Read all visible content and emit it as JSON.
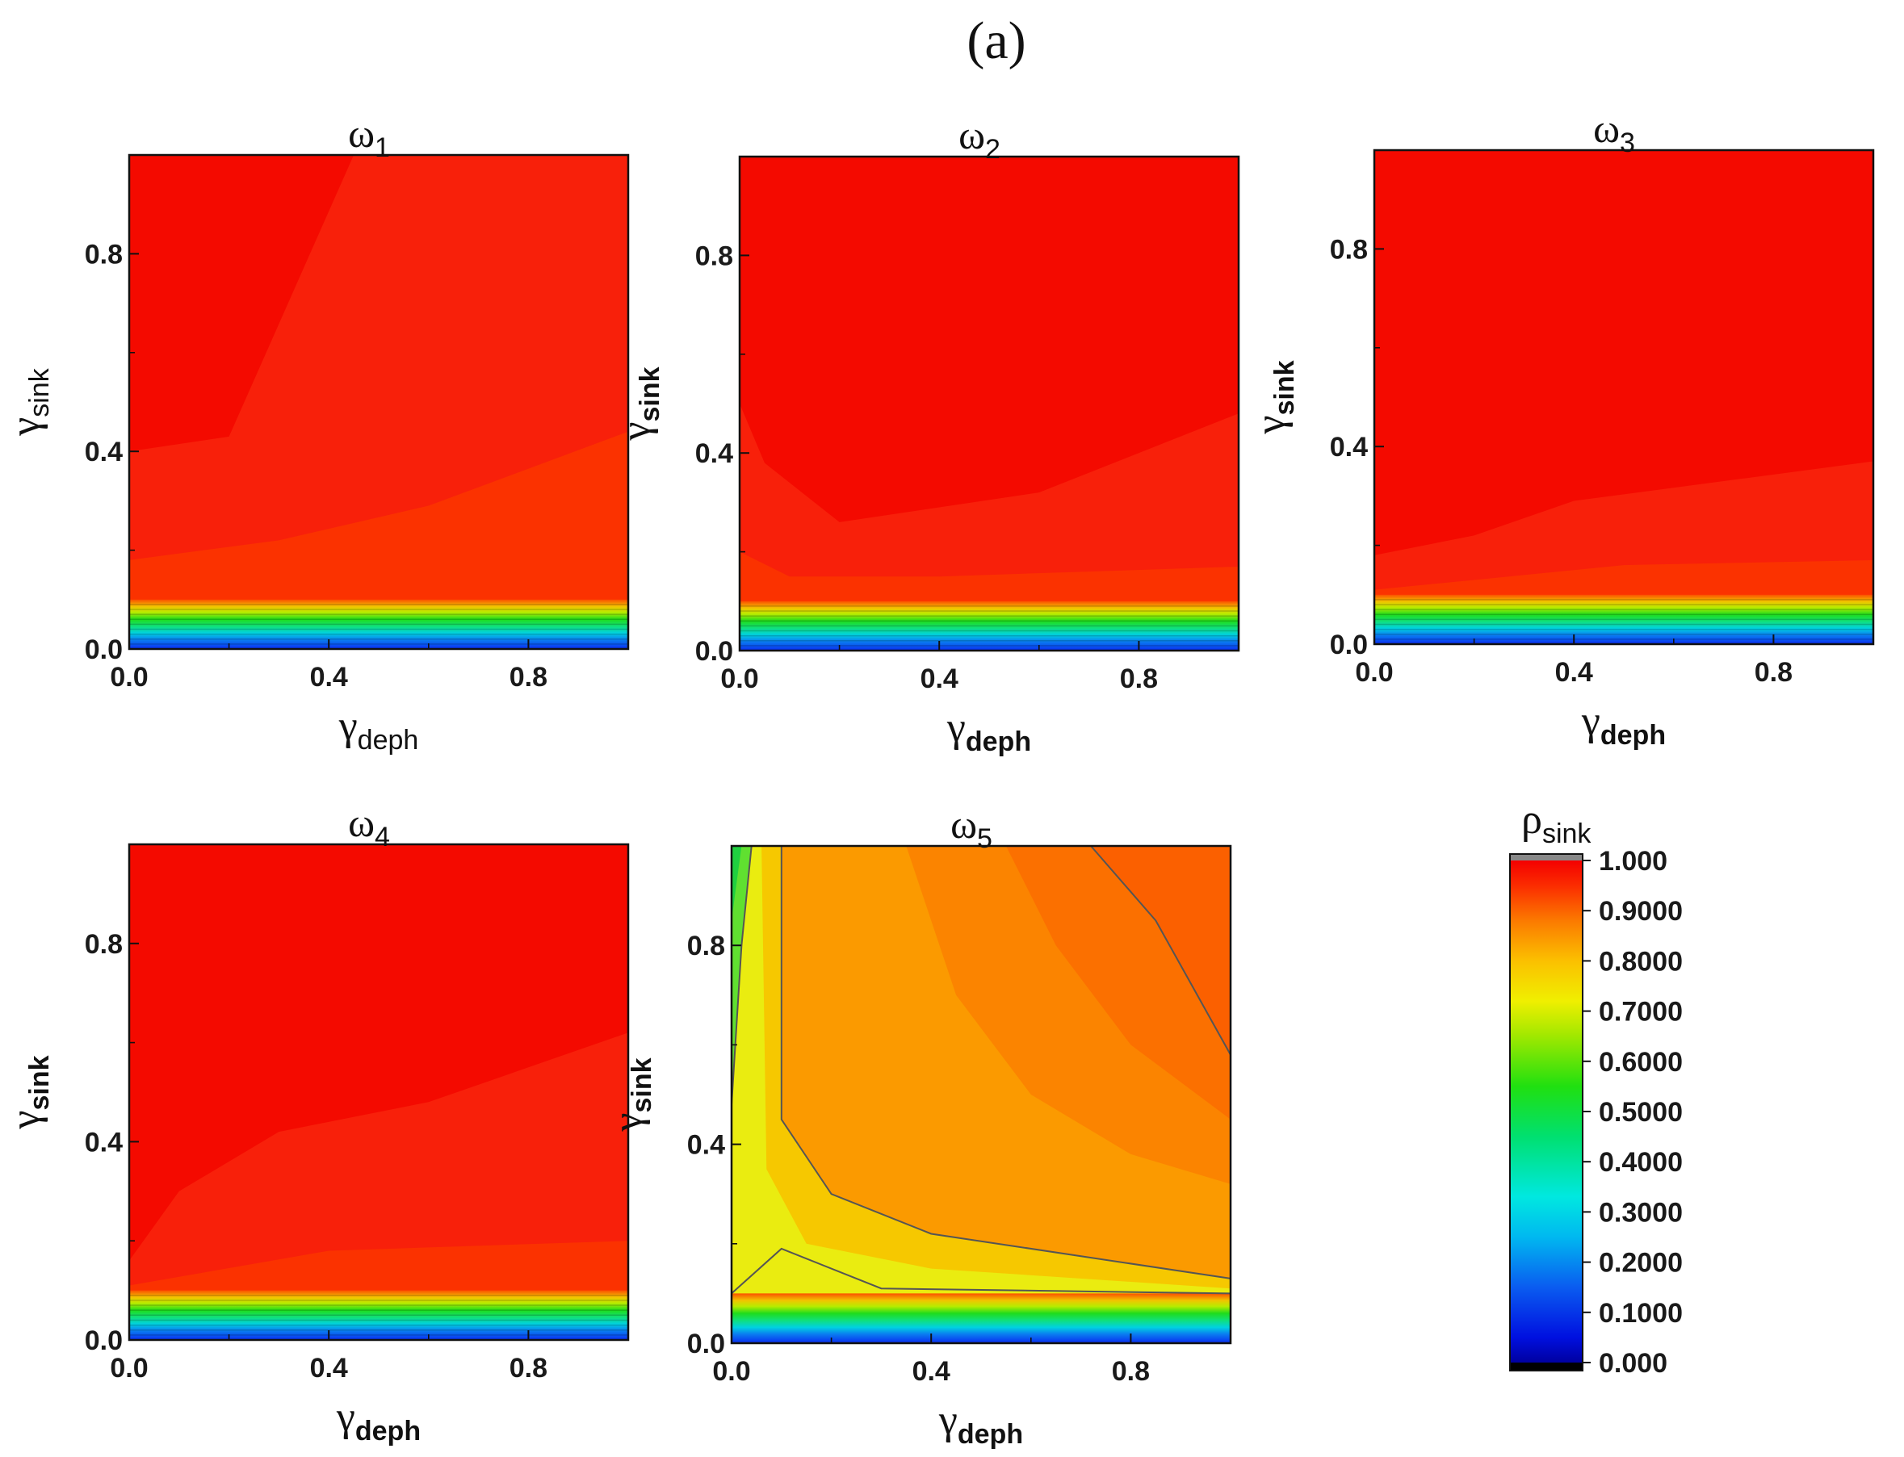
{
  "figure_label": "(a)",
  "colors": {
    "red": "#f40a00",
    "orange_red": "#fb3800",
    "orange": "#fb8a00",
    "yellow": "#f2e800",
    "green": "#1fdc1c",
    "cyan": "#00d2e0",
    "blue": "#0a2cf0"
  },
  "chart_data": [
    {
      "type": "heatmap",
      "title": "ω",
      "title_sub": "1",
      "xlabel": "γ",
      "xlabel_sub": "deph",
      "ylabel": "γ",
      "ylabel_sub": "sink",
      "xlim": [
        0,
        1
      ],
      "ylim": [
        0,
        1
      ],
      "xticks": [
        "0.0",
        "0.4",
        "0.8"
      ],
      "yticks": [
        "0.0",
        "0.4",
        "0.8"
      ],
      "z_description": "rho_sink ≈ 0.95–1.0 for gamma_sink > 0.1; drops to 0 as gamma_sink → 0",
      "contour_levels": [
        {
          "value": 0.97,
          "y_at_x": [
            [
              0,
              0.4
            ],
            [
              0.2,
              0.43
            ],
            [
              0.45,
              1.0
            ]
          ]
        },
        {
          "value": 0.93,
          "y_at_x": [
            [
              0,
              0.18
            ],
            [
              0.3,
              0.22
            ],
            [
              0.6,
              0.29
            ],
            [
              1.0,
              0.44
            ]
          ]
        }
      ]
    },
    {
      "type": "heatmap",
      "title": "ω",
      "title_sub": "2",
      "xlabel": "γ",
      "xlabel_sub": "deph",
      "ylabel": "γ",
      "ylabel_sub": "sink",
      "xlim": [
        0,
        1
      ],
      "ylim": [
        0,
        1
      ],
      "xticks": [
        "0.0",
        "0.4",
        "0.8"
      ],
      "yticks": [
        "0.0",
        "0.4",
        "0.8"
      ],
      "z_description": "rho_sink ≈ 0.95–1.0 for gamma_sink > 0.1; drops to 0 as gamma_sink → 0",
      "contour_levels": [
        {
          "value": 0.97,
          "y_at_x": [
            [
              0,
              0.5
            ],
            [
              0.05,
              0.38
            ],
            [
              0.2,
              0.26
            ],
            [
              0.6,
              0.32
            ],
            [
              1.0,
              0.48
            ]
          ]
        },
        {
          "value": 0.93,
          "y_at_x": [
            [
              0,
              0.2
            ],
            [
              0.1,
              0.15
            ],
            [
              0.4,
              0.15
            ],
            [
              1.0,
              0.17
            ]
          ]
        }
      ]
    },
    {
      "type": "heatmap",
      "title": "ω",
      "title_sub": "3",
      "xlabel": "γ",
      "xlabel_sub": "deph",
      "ylabel": "γ",
      "ylabel_sub": "sink",
      "xlim": [
        0,
        1
      ],
      "ylim": [
        0,
        1
      ],
      "xticks": [
        "0.0",
        "0.4",
        "0.8"
      ],
      "yticks": [
        "0.0",
        "0.4",
        "0.8"
      ],
      "z_description": "rho_sink ≈ 0.95–1.0 for gamma_sink > 0.1; drops to 0 as gamma_sink → 0",
      "contour_levels": [
        {
          "value": 0.97,
          "y_at_x": [
            [
              0,
              0.18
            ],
            [
              0.2,
              0.22
            ],
            [
              0.4,
              0.29
            ],
            [
              1.0,
              0.37
            ]
          ]
        },
        {
          "value": 0.93,
          "y_at_x": [
            [
              0,
              0.11
            ],
            [
              0.2,
              0.13
            ],
            [
              0.5,
              0.16
            ],
            [
              1.0,
              0.17
            ]
          ]
        }
      ]
    },
    {
      "type": "heatmap",
      "title": "ω",
      "title_sub": "4",
      "xlabel": "γ",
      "xlabel_sub": "deph",
      "ylabel": "γ",
      "ylabel_sub": "sink",
      "xlim": [
        0,
        1
      ],
      "ylim": [
        0,
        1
      ],
      "xticks": [
        "0.0",
        "0.4",
        "0.8"
      ],
      "yticks": [
        "0.0",
        "0.4",
        "0.8"
      ],
      "z_description": "rho_sink ≈ 0.95–1.0 for gamma_sink > 0.1; drops to 0 as gamma_sink → 0",
      "contour_levels": [
        {
          "value": 0.97,
          "y_at_x": [
            [
              0,
              0.16
            ],
            [
              0.1,
              0.3
            ],
            [
              0.3,
              0.42
            ],
            [
              0.6,
              0.48
            ],
            [
              1.0,
              0.62
            ]
          ]
        },
        {
          "value": 0.93,
          "y_at_x": [
            [
              0,
              0.11
            ],
            [
              0.4,
              0.18
            ],
            [
              1.0,
              0.2
            ]
          ]
        }
      ]
    },
    {
      "type": "heatmap",
      "title": "ω",
      "title_sub": "5",
      "xlabel": "γ",
      "xlabel_sub": "deph",
      "ylabel": "γ",
      "ylabel_sub": "sink",
      "xlim": [
        0,
        1
      ],
      "ylim": [
        0,
        1
      ],
      "xticks": [
        "0.0",
        "0.4",
        "0.8"
      ],
      "yticks": [
        "0.0",
        "0.4",
        "0.8"
      ],
      "z_description": "rho_sink ≈ 0.55–0.7 near gamma_deph = 0, 0.7–0.78 near gamma_sink ≈ 0.2, rising to ≈ 0.88 at top-right; drops to 0 as gamma_sink → 0",
      "contour_levels": [
        {
          "value": 0.9,
          "y_at_x": [
            [
              0.72,
              1.0
            ],
            [
              0.85,
              0.85
            ],
            [
              1.0,
              0.58
            ]
          ]
        },
        {
          "value": 0.75,
          "y_at_x": [
            [
              0.1,
              1.0
            ],
            [
              0.1,
              0.45
            ],
            [
              0.2,
              0.3
            ],
            [
              0.4,
              0.22
            ],
            [
              1.0,
              0.13
            ]
          ]
        },
        {
          "value": 0.65,
          "y_at_x": [
            [
              0.04,
              1.0
            ],
            [
              0.02,
              0.8
            ],
            [
              0,
              0.48
            ]
          ]
        }
      ]
    }
  ],
  "colorbar": {
    "label": "ρ",
    "label_sub": "sink",
    "range": [
      0,
      1
    ],
    "ticks": [
      "1.000",
      "0.9000",
      "0.8000",
      "0.7000",
      "0.6000",
      "0.5000",
      "0.4000",
      "0.3000",
      "0.2000",
      "0.1000",
      "0.000"
    ],
    "tick_values": [
      1.0,
      0.9,
      0.8,
      0.7,
      0.6,
      0.5,
      0.4,
      0.3,
      0.2,
      0.1,
      0.0
    ]
  }
}
